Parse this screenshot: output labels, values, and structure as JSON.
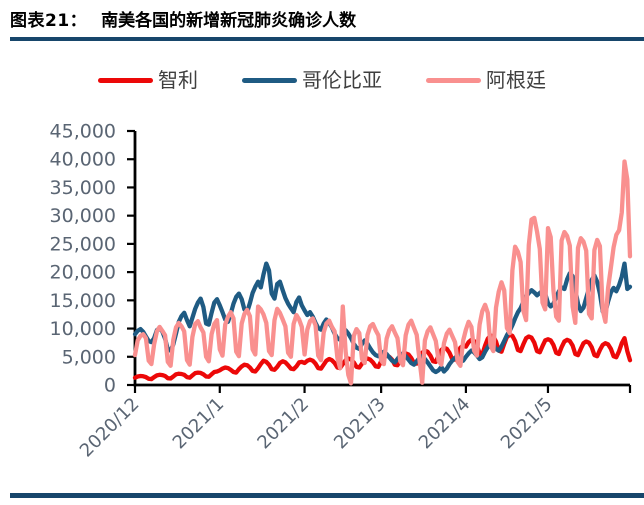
{
  "figure": {
    "label": "图表21：",
    "title": "南美各国的新增新冠肺炎确诊人数",
    "rule_color": "#17466b"
  },
  "chart_data": {
    "type": "line",
    "title": "",
    "xlabel": "",
    "ylabel": "",
    "grid": false,
    "legend_position": "top",
    "axis_color": "#000000",
    "tick_label_color": "#5a6573",
    "y_axis": {
      "min": 0,
      "max": 45000,
      "step": 5000,
      "tick_labels": [
        "0",
        "5,000",
        "10,000",
        "15,000",
        "20,000",
        "25,000",
        "30,000",
        "35,000",
        "40,000",
        "45,000"
      ]
    },
    "x_axis": {
      "start": "2020/12/1",
      "end": "2021/5/31",
      "tick_labels": [
        "2020/12",
        "2021/1",
        "2021/2",
        "2021/3",
        "2021/4",
        "2021/5"
      ],
      "tick_day_offsets": [
        0,
        31,
        62,
        90,
        121,
        151
      ],
      "end_day_offset": 182
    },
    "series": [
      {
        "key": "chile",
        "name": "智利",
        "color": "#ec0808",
        "values": [
          1300,
          1500,
          1600,
          1550,
          1400,
          1100,
          1050,
          1400,
          1700,
          1800,
          1750,
          1600,
          1200,
          1150,
          1500,
          1900,
          2000,
          1950,
          1800,
          1400,
          1300,
          1700,
          2100,
          2200,
          2150,
          1900,
          1500,
          1450,
          1900,
          2300,
          2400,
          2600,
          2900,
          3100,
          3000,
          2700,
          2300,
          2200,
          2800,
          3300,
          3600,
          3500,
          3100,
          2500,
          2400,
          3000,
          3700,
          4300,
          4100,
          3600,
          2800,
          2700,
          3200,
          3900,
          4200,
          4000,
          3500,
          2900,
          2800,
          3300,
          4000,
          4100,
          3900,
          4300,
          4500,
          4300,
          3800,
          3000,
          2900,
          3600,
          4300,
          4600,
          4400,
          3900,
          3100,
          3000,
          3700,
          4400,
          4700,
          4500,
          4000,
          3200,
          3100,
          3800,
          4500,
          4700,
          4500,
          4000,
          3300,
          3200,
          4200,
          4900,
          5200,
          5000,
          4500,
          3600,
          3500,
          4400,
          5300,
          5600,
          5400,
          4800,
          3900,
          3800,
          4800,
          5700,
          6100,
          5900,
          5200,
          4200,
          4100,
          5200,
          6200,
          6600,
          6400,
          5700,
          4600,
          4500,
          5600,
          6600,
          7000,
          6800,
          7600,
          8000,
          7800,
          7000,
          5600,
          5400,
          7000,
          8200,
          8800,
          8600,
          7700,
          6100,
          5900,
          7300,
          8500,
          8900,
          8700,
          7800,
          6200,
          6000,
          7200,
          8300,
          8600,
          8400,
          7500,
          6000,
          5800,
          6900,
          7900,
          8100,
          7900,
          7100,
          5700,
          5500,
          6700,
          7700,
          8000,
          7800,
          7000,
          5500,
          5300,
          6400,
          7400,
          7700,
          7500,
          6700,
          5300,
          5100,
          6200,
          7100,
          7400,
          7200,
          6400,
          5100,
          4900,
          6000,
          7400,
          8300,
          6000,
          4400
        ]
      },
      {
        "key": "colombia",
        "name": "哥伦比亚",
        "color": "#1f5b83",
        "values": [
          9000,
          9600,
          9900,
          9400,
          8600,
          7800,
          7600,
          8300,
          9700,
          10100,
          9500,
          8200,
          6300,
          6100,
          7200,
          9100,
          11200,
          12200,
          12800,
          11500,
          10400,
          11900,
          13500,
          14600,
          15300,
          13800,
          10900,
          10700,
          12800,
          14600,
          15200,
          14100,
          12900,
          11600,
          11200,
          12600,
          14400,
          15600,
          16200,
          15200,
          13400,
          12900,
          14500,
          16300,
          17400,
          18300,
          17300,
          19600,
          21500,
          20300,
          16200,
          15300,
          17900,
          18300,
          16800,
          15400,
          14400,
          13600,
          12900,
          14700,
          15500,
          14100,
          13200,
          12400,
          12900,
          12100,
          11000,
          10100,
          9800,
          10900,
          11600,
          11000,
          10200,
          9100,
          8300,
          8000,
          9000,
          9700,
          9100,
          8300,
          7300,
          6600,
          6400,
          7300,
          7900,
          7300,
          6500,
          5800,
          5300,
          5100,
          5600,
          5900,
          5500,
          4900,
          4300,
          4000,
          4600,
          5300,
          5600,
          5100,
          4500,
          3900,
          3600,
          4200,
          4800,
          5100,
          4600,
          4000,
          3300,
          2600,
          2300,
          2600,
          3200,
          2400,
          2900,
          3700,
          4300,
          4800,
          5200,
          4700,
          4300,
          5000,
          5600,
          6100,
          5800,
          5200,
          4600,
          4900,
          5900,
          6700,
          7300,
          7000,
          6400,
          6100,
          6800,
          7800,
          8800,
          9600,
          10600,
          11800,
          12900,
          13600,
          14700,
          15700,
          16300,
          16800,
          16400,
          15900,
          16300,
          16700,
          16200,
          14500,
          13900,
          14400,
          15600,
          16600,
          17300,
          17000,
          18700,
          19800,
          19300,
          16900,
          14400,
          13100,
          13700,
          15400,
          17100,
          18600,
          19400,
          18300,
          16200,
          13000,
          12900,
          14800,
          16400,
          17200,
          16600,
          17700,
          19200,
          21500,
          17000,
          17400
        ]
      },
      {
        "key": "argentina",
        "name": "阿根廷",
        "color": "#f9908f",
        "values": [
          5300,
          7900,
          8700,
          9000,
          8300,
          4300,
          3700,
          7200,
          9500,
          10300,
          9600,
          8800,
          4100,
          3400,
          8000,
          10200,
          11000,
          10400,
          9500,
          4400,
          3600,
          8500,
          10800,
          11300,
          10200,
          9300,
          5000,
          4200,
          9000,
          10800,
          11500,
          6300,
          5200,
          10700,
          12100,
          12900,
          11800,
          5900,
          5100,
          10900,
          12600,
          13300,
          12200,
          6300,
          5400,
          13900,
          13400,
          12500,
          11000,
          6000,
          5300,
          11500,
          13500,
          12800,
          11600,
          10400,
          5700,
          5000,
          10800,
          12400,
          11600,
          10300,
          5400,
          9800,
          11300,
          11800,
          10600,
          5200,
          4400,
          9300,
          10900,
          11400,
          10300,
          9500,
          4800,
          3000,
          13900,
          6000,
          1800,
          300,
          8700,
          9900,
          9200,
          4600,
          3900,
          8900,
          10400,
          10800,
          9700,
          8800,
          4400,
          3700,
          8200,
          9700,
          10400,
          9300,
          8300,
          4200,
          3500,
          8800,
          10700,
          11400,
          10100,
          8900,
          4600,
          400,
          7900,
          9500,
          10200,
          9000,
          7800,
          4300,
          3600,
          7400,
          9100,
          9800,
          8700,
          7600,
          4100,
          3400,
          7900,
          9800,
          11200,
          10300,
          6100,
          5200,
          10700,
          13100,
          14200,
          12800,
          7000,
          6000,
          13700,
          16500,
          18200,
          16800,
          10100,
          9200,
          20300,
          24500,
          23600,
          21800,
          13200,
          11500,
          24800,
          29300,
          29600,
          27200,
          24100,
          14600,
          13400,
          27800,
          26200,
          16800,
          12100,
          11400,
          25600,
          27100,
          26400,
          24700,
          13900,
          11000,
          24300,
          26000,
          25400,
          23800,
          12600,
          11800,
          23900,
          25700,
          24600,
          13300,
          11200,
          17200,
          20800,
          24400,
          26600,
          27400,
          30600,
          39600,
          36400,
          22800
        ]
      }
    ]
  }
}
